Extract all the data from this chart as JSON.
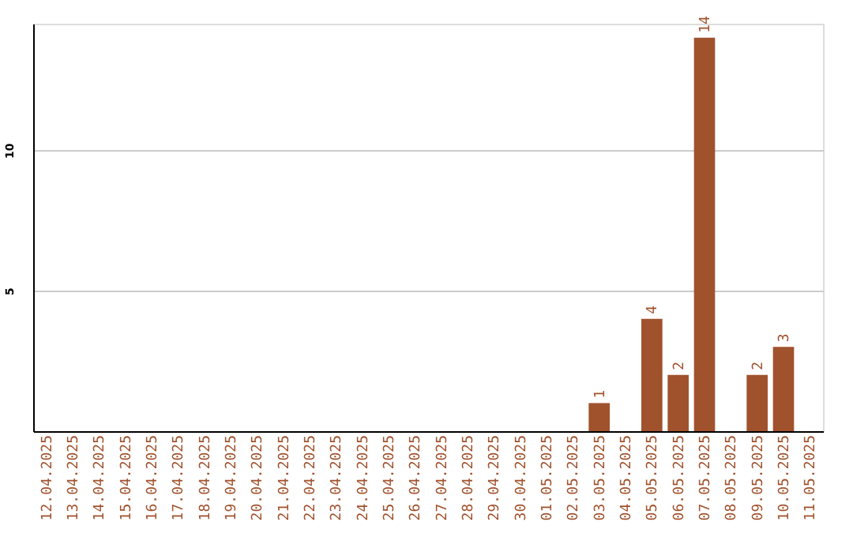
{
  "chart_data": {
    "type": "bar",
    "categories": [
      "12.04.2025",
      "13.04.2025",
      "14.04.2025",
      "15.04.2025",
      "16.04.2025",
      "17.04.2025",
      "18.04.2025",
      "19.04.2025",
      "20.04.2025",
      "21.04.2025",
      "22.04.2025",
      "23.04.2025",
      "24.04.2025",
      "25.04.2025",
      "26.04.2025",
      "27.04.2025",
      "28.04.2025",
      "29.04.2025",
      "30.04.2025",
      "01.05.2025",
      "02.05.2025",
      "03.05.2025",
      "04.05.2025",
      "05.05.2025",
      "06.05.2025",
      "07.05.2025",
      "08.05.2025",
      "09.05.2025",
      "10.05.2025",
      "11.05.2025"
    ],
    "values": [
      0,
      0,
      0,
      0,
      0,
      0,
      0,
      0,
      0,
      0,
      0,
      0,
      0,
      0,
      0,
      0,
      0,
      0,
      0,
      0,
      0,
      1,
      0,
      4,
      2,
      14,
      0,
      2,
      3,
      0
    ],
    "value_labels": [
      null,
      null,
      null,
      null,
      null,
      null,
      null,
      null,
      null,
      null,
      null,
      null,
      null,
      null,
      null,
      null,
      null,
      null,
      null,
      null,
      null,
      "1",
      null,
      "4",
      "2",
      "14",
      null,
      "2",
      "3",
      null
    ],
    "color": "#a0522d",
    "ylim": [
      0,
      14.5
    ],
    "yticks": [
      5,
      10
    ],
    "grid": "y"
  }
}
